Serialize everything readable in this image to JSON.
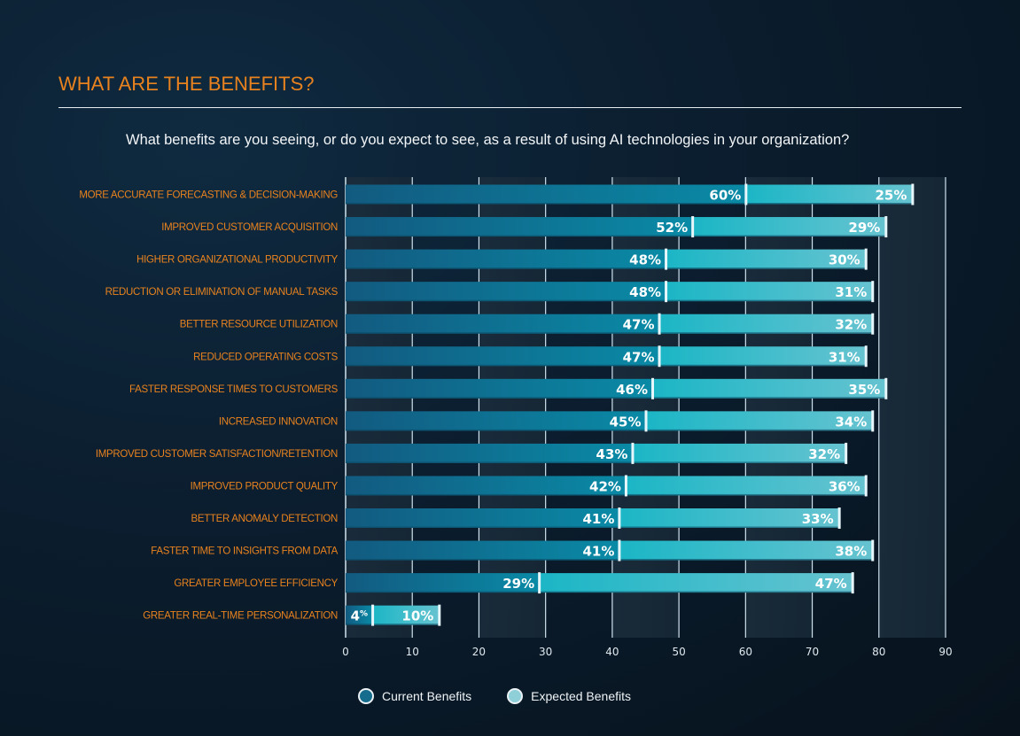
{
  "header": {
    "title": "WHAT ARE THE BENEFITS?",
    "subtitle": "What benefits are you seeing, or do you expect to see, as a result of using AI technologies in your organization?"
  },
  "colors": {
    "title": "#e8821e",
    "current": "#0e6a8e",
    "expected": "#8bcfd9",
    "background": "#0b1d2e"
  },
  "legend": [
    {
      "label": "Current Benefits",
      "color": "#156c8c"
    },
    {
      "label": "Expected Benefits",
      "color": "#8ecfd8"
    }
  ],
  "chart_data": {
    "type": "bar",
    "orientation": "horizontal",
    "stacked": true,
    "title": "What benefits are you seeing, or do you expect to see, as a result of using AI technologies in your organization?",
    "xlabel": "",
    "ylabel": "",
    "xlim": [
      0,
      90
    ],
    "xticks": [
      0,
      10,
      20,
      30,
      40,
      50,
      60,
      70,
      80,
      90
    ],
    "grid": true,
    "legend_position": "bottom-center",
    "categories": [
      "MORE ACCURATE FORECASTING & DECISION-MAKING",
      "IMPROVED CUSTOMER ACQUISITION",
      "HIGHER ORGANIZATIONAL PRODUCTIVITY",
      "REDUCTION OR ELIMINATION OF MANUAL TASKS",
      "BETTER RESOURCE UTILIZATION",
      "REDUCED OPERATING COSTS",
      "FASTER RESPONSE TIMES TO CUSTOMERS",
      "INCREASED INNOVATION",
      "IMPROVED CUSTOMER SATISFACTION/RETENTION",
      "IMPROVED PRODUCT QUALITY",
      "BETTER ANOMALY DETECTION",
      "FASTER TIME TO INSIGHTS FROM DATA",
      "GREATER EMPLOYEE EFFICIENCY",
      "GREATER REAL-TIME PERSONALIZATION"
    ],
    "series": [
      {
        "name": "Current Benefits",
        "values": [
          60,
          52,
          48,
          48,
          47,
          47,
          46,
          45,
          43,
          42,
          41,
          41,
          29,
          4
        ]
      },
      {
        "name": "Expected Benefits",
        "values": [
          25,
          29,
          30,
          31,
          32,
          31,
          35,
          34,
          32,
          36,
          33,
          38,
          47,
          10
        ]
      }
    ],
    "value_suffix": "%"
  }
}
